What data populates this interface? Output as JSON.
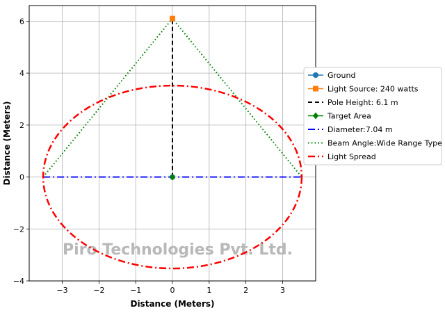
{
  "chart_data": {
    "type": "line",
    "xlabel": "Distance (Meters)",
    "ylabel": "Distance (Meters)",
    "xlim": [
      -3.9,
      3.9
    ],
    "ylim": [
      -4,
      6.6
    ],
    "x_ticks": [
      -3,
      -2,
      -1,
      0,
      1,
      2,
      3
    ],
    "x_tick_labels": [
      "−3",
      "−2",
      "−1",
      "0",
      "1",
      "2",
      "3"
    ],
    "y_ticks": [
      -4,
      -2,
      0,
      2,
      4,
      6
    ],
    "y_tick_labels": [
      "−4",
      "−2",
      "0",
      "2",
      "4",
      "6"
    ],
    "grid": true,
    "legend_position": "right",
    "watermark": "Piro Technologies Pvt. Ltd.",
    "series": [
      {
        "name": "Ground",
        "kind": "marker",
        "marker": "circle",
        "color": "#1f77b4",
        "x": [
          0
        ],
        "y": [
          0
        ]
      },
      {
        "name": "Light Source: 240 watts",
        "kind": "marker",
        "marker": "square",
        "color": "#ff7f0e",
        "x": [
          0
        ],
        "y": [
          6.1
        ]
      },
      {
        "name": "Pole Height: 6.1 m",
        "kind": "line",
        "dash": "dashed",
        "color": "#000000",
        "x": [
          0,
          0
        ],
        "y": [
          0,
          6.1
        ]
      },
      {
        "name": "Target Area",
        "kind": "marker",
        "marker": "diamond",
        "color": "#008000",
        "x": [
          0
        ],
        "y": [
          0
        ]
      },
      {
        "name": "Diameter:7.04 m",
        "kind": "line",
        "dash": "dashdot",
        "color": "#0000ff",
        "x": [
          -3.52,
          3.52
        ],
        "y": [
          0,
          0
        ]
      },
      {
        "name": "Beam Angle:Wide Range Type III",
        "kind": "line",
        "dash": "dotted",
        "color": "#008000",
        "x": [
          -3.52,
          0,
          3.52
        ],
        "y": [
          0,
          6.1,
          0
        ]
      },
      {
        "name": "Light Spread",
        "kind": "ellipse",
        "dash": "dashdot",
        "color": "#ff0000",
        "center": [
          0,
          0
        ],
        "radius": 3.52
      }
    ]
  }
}
